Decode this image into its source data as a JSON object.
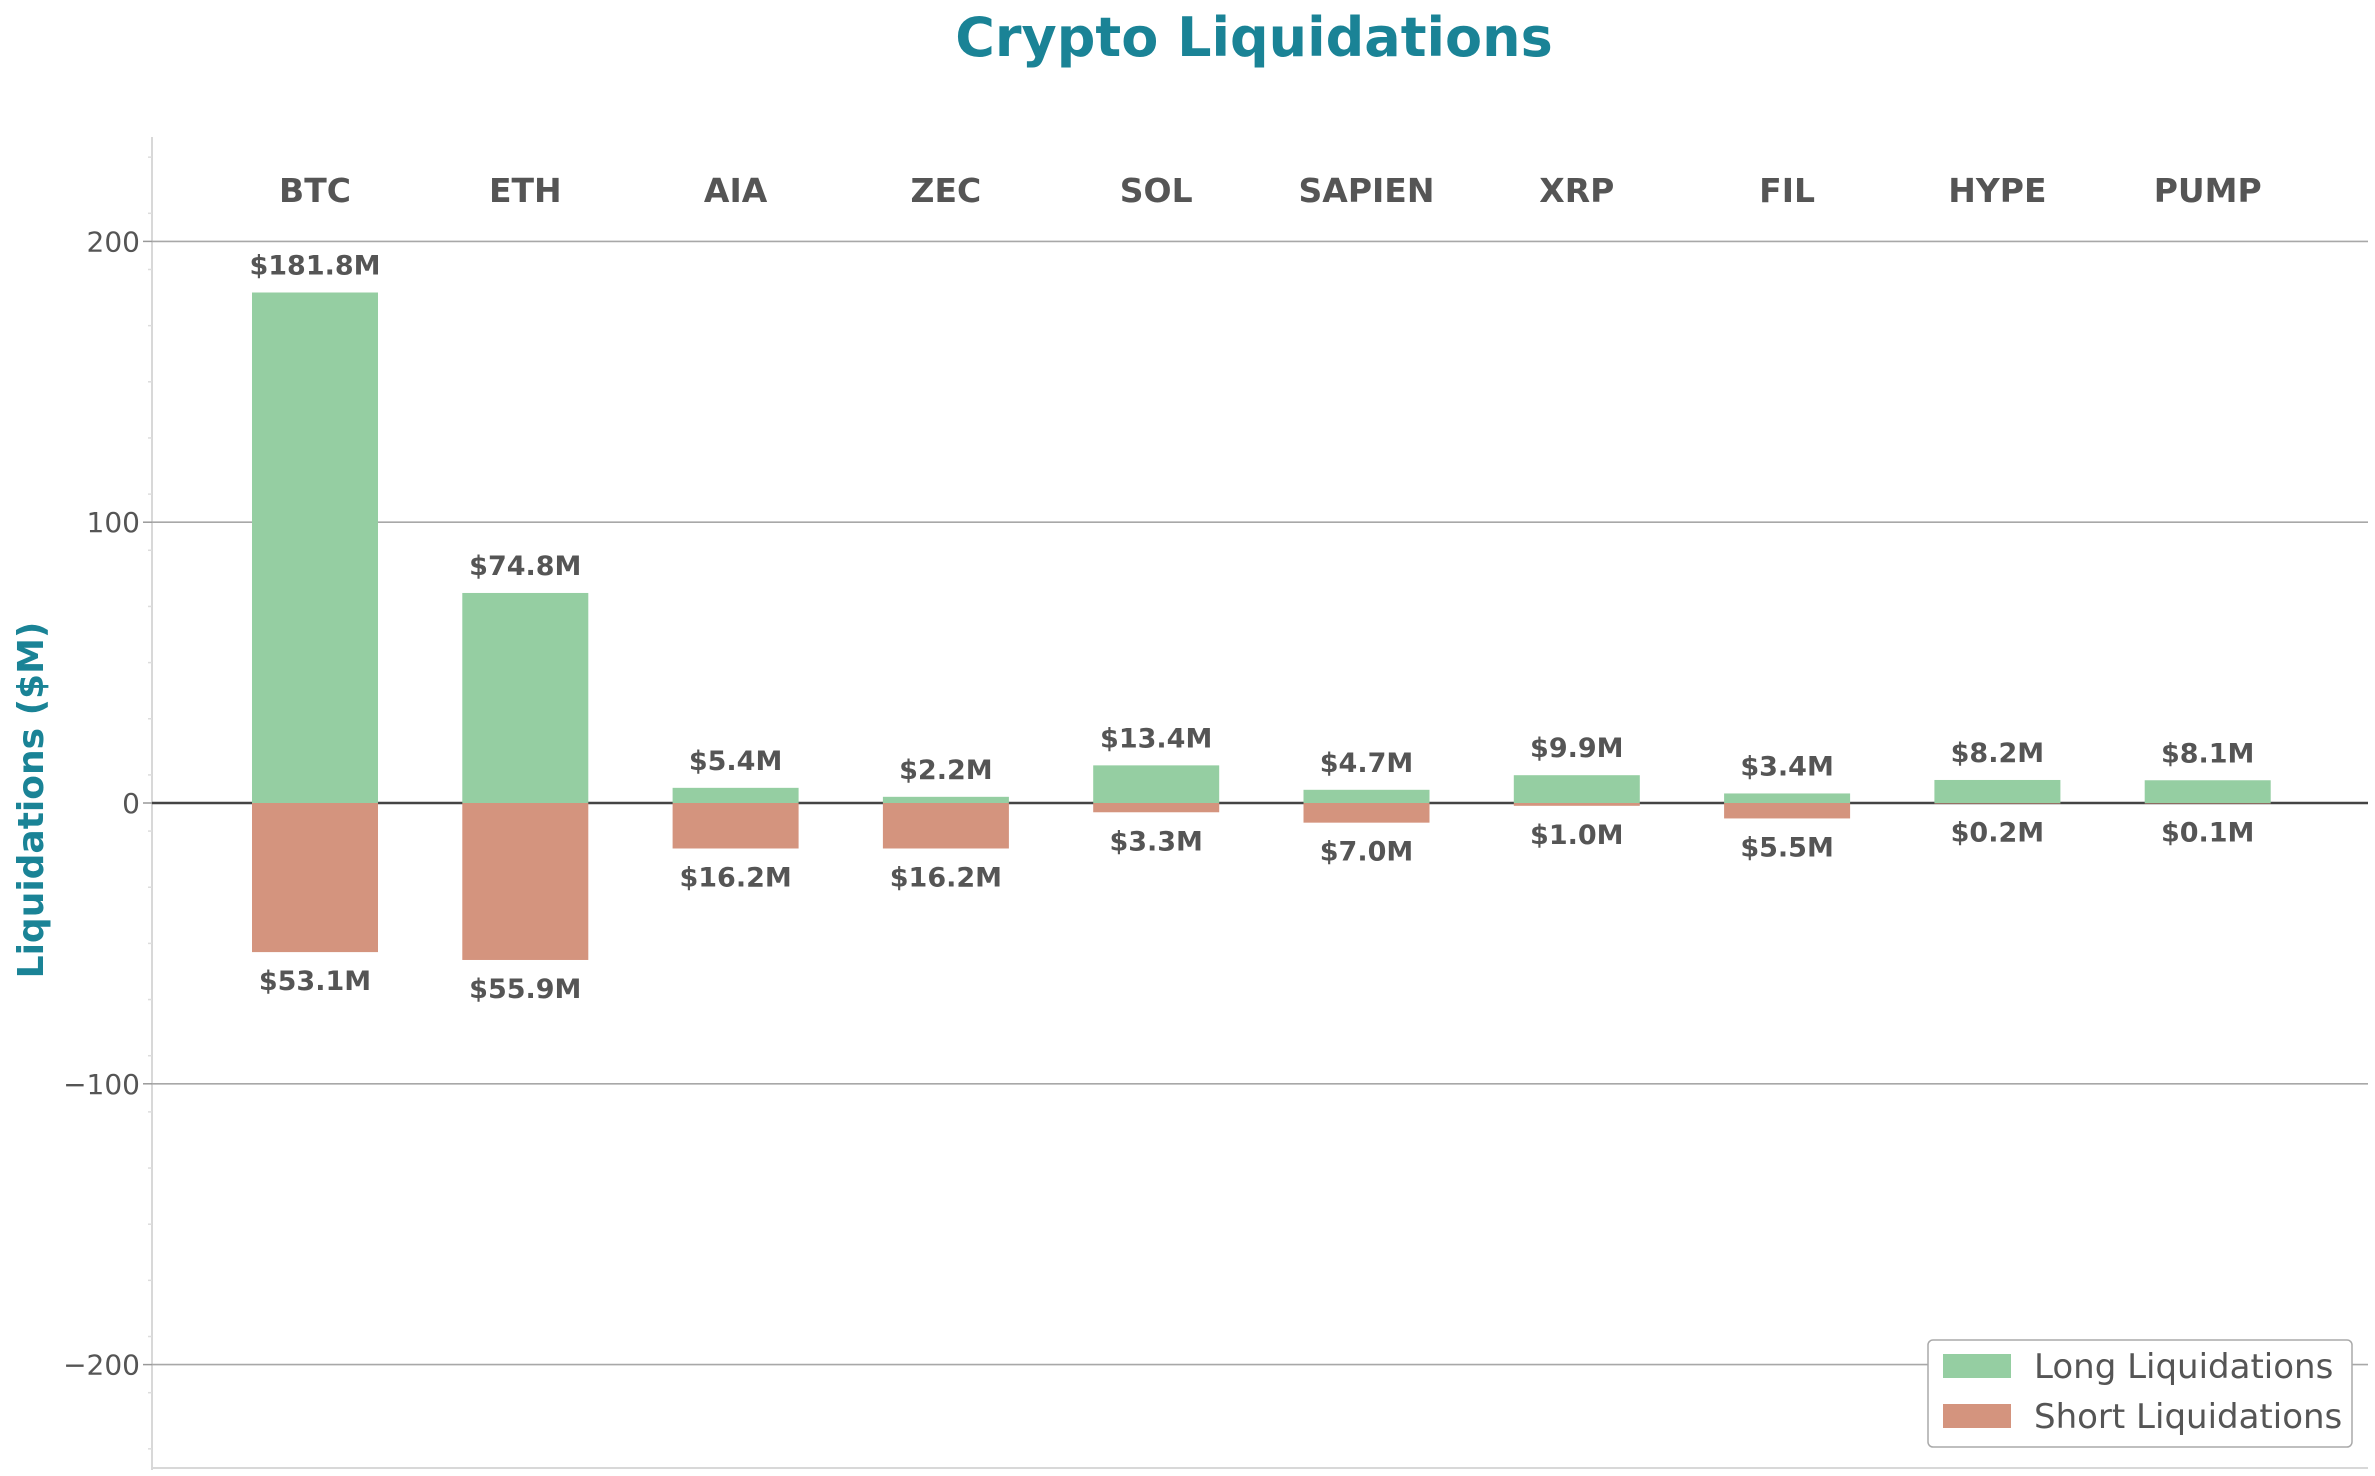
{
  "chart_data": {
    "type": "bar",
    "title": "Crypto Liquidations",
    "ylabel": "Liquidations ($M)",
    "xlabel": "",
    "ylim": [
      -235,
      235
    ],
    "yticks": [
      200,
      100,
      0,
      -100,
      -200
    ],
    "ytick_labels": [
      "200",
      "100",
      "0",
      "−100",
      "−200"
    ],
    "grid": "horizontal",
    "legend_position": "bottom-right",
    "categories": [
      "BTC",
      "ETH",
      "AIA",
      "ZEC",
      "SOL",
      "SAPIEN",
      "XRP",
      "FIL",
      "HYPE",
      "PUMP"
    ],
    "series": [
      {
        "name": "Long Liquidations",
        "color": "#95cea2",
        "values": [
          181.8,
          74.8,
          5.4,
          2.2,
          13.4,
          4.7,
          9.9,
          3.4,
          8.2,
          8.1
        ],
        "labels": [
          "$181.8M",
          "$74.8M",
          "$5.4M",
          "$2.2M",
          "$13.4M",
          "$4.7M",
          "$9.9M",
          "$3.4M",
          "$8.2M",
          "$8.1M"
        ]
      },
      {
        "name": "Short Liquidations",
        "color": "#d4947e",
        "values": [
          -53.1,
          -55.9,
          -16.2,
          -16.2,
          -3.3,
          -7.0,
          -1.0,
          -5.5,
          -0.2,
          -0.1
        ],
        "labels": [
          "$53.1M",
          "$55.9M",
          "$16.2M",
          "$16.2M",
          "$3.3M",
          "$7.0M",
          "$1.0M",
          "$5.5M",
          "$0.2M",
          "$0.1M"
        ]
      }
    ]
  }
}
